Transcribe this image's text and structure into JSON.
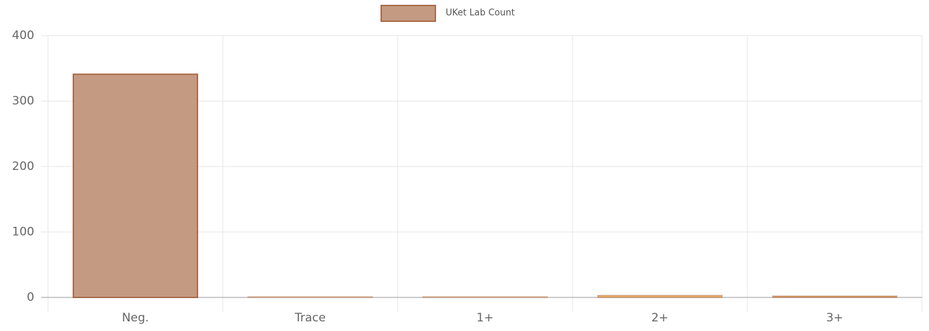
{
  "chart_data": {
    "type": "bar",
    "categories": [
      "Neg.",
      "Trace",
      "1+",
      "2+",
      "3+"
    ],
    "series": [
      {
        "name": "UKet Lab Count",
        "color": "#c49a82",
        "bar_colors": [
          "#c49a82",
          "#f2cfaa",
          "#f2cfaa",
          "#f0b56a",
          "#e0a060"
        ],
        "values": [
          341,
          1,
          1,
          3,
          2
        ]
      }
    ],
    "ylim": [
      0,
      400
    ],
    "yticks": [
      0,
      100,
      200,
      300,
      400
    ],
    "grid": true,
    "legend": "top"
  }
}
